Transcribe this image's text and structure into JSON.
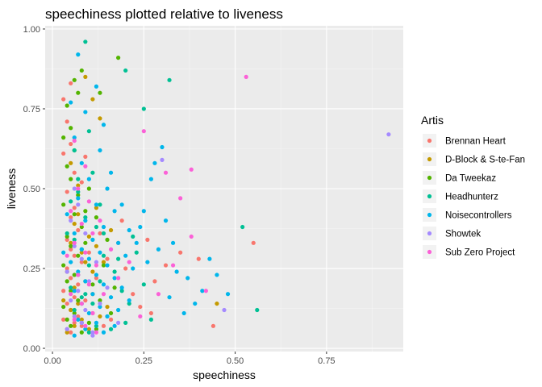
{
  "chart_data": {
    "type": "scatter",
    "title": "speechiness plotted relative to liveness",
    "xlabel": "speechiness",
    "ylabel": "liveness",
    "xlim": [
      -0.02,
      0.96
    ],
    "ylim": [
      -0.01,
      1.01
    ],
    "x_ticks": [
      {
        "value": 0.0,
        "label": "0.00"
      },
      {
        "value": 0.25,
        "label": "0.25"
      },
      {
        "value": 0.5,
        "label": "0.50"
      },
      {
        "value": 0.75,
        "label": "0.75"
      }
    ],
    "y_ticks": [
      {
        "value": 0.0,
        "label": "0.00"
      },
      {
        "value": 0.25,
        "label": "0.25"
      },
      {
        "value": 0.5,
        "label": "0.50"
      },
      {
        "value": 0.75,
        "label": "0.75"
      },
      {
        "value": 1.0,
        "label": "1.00"
      }
    ],
    "grid": true,
    "legend": {
      "title": "Artis",
      "position": "right"
    },
    "series": [
      {
        "name": "Brennan Heart",
        "color": "#F8766D",
        "points": [
          [
            0.03,
            0.78
          ],
          [
            0.04,
            0.71
          ],
          [
            0.05,
            0.64
          ],
          [
            0.03,
            0.61
          ],
          [
            0.06,
            0.55
          ],
          [
            0.04,
            0.49
          ],
          [
            0.06,
            0.44
          ],
          [
            0.05,
            0.41
          ],
          [
            0.07,
            0.37
          ],
          [
            0.04,
            0.34
          ],
          [
            0.05,
            0.31
          ],
          [
            0.06,
            0.29
          ],
          [
            0.08,
            0.27
          ],
          [
            0.04,
            0.25
          ],
          [
            0.05,
            0.22
          ],
          [
            0.07,
            0.2
          ],
          [
            0.03,
            0.18
          ],
          [
            0.06,
            0.16
          ],
          [
            0.04,
            0.14
          ],
          [
            0.05,
            0.12
          ],
          [
            0.07,
            0.1
          ],
          [
            0.03,
            0.09
          ],
          [
            0.06,
            0.08
          ],
          [
            0.08,
            0.07
          ],
          [
            0.04,
            0.06
          ],
          [
            0.05,
            0.05
          ],
          [
            0.1,
            0.3
          ],
          [
            0.12,
            0.22
          ],
          [
            0.09,
            0.15
          ],
          [
            0.11,
            0.11
          ],
          [
            0.13,
            0.36
          ],
          [
            0.15,
            0.28
          ],
          [
            0.18,
            0.33
          ],
          [
            0.2,
            0.25
          ],
          [
            0.22,
            0.17
          ],
          [
            0.26,
            0.34
          ],
          [
            0.24,
            0.13
          ],
          [
            0.28,
            0.21
          ],
          [
            0.35,
            0.3
          ],
          [
            0.4,
            0.28
          ],
          [
            0.55,
            0.33
          ],
          [
            0.44,
            0.07
          ],
          [
            0.16,
            0.09
          ],
          [
            0.27,
            0.11
          ],
          [
            0.05,
            0.83
          ],
          [
            0.09,
            0.6
          ],
          [
            0.08,
            0.52
          ],
          [
            0.14,
            0.07
          ],
          [
            0.19,
            0.4
          ],
          [
            0.31,
            0.26
          ]
        ]
      },
      {
        "name": "D-Block & S-te-Fan",
        "color": "#C49A00",
        "points": [
          [
            0.09,
            0.85
          ],
          [
            0.11,
            0.78
          ],
          [
            0.13,
            0.72
          ],
          [
            0.05,
            0.58
          ],
          [
            0.07,
            0.51
          ],
          [
            0.12,
            0.44
          ],
          [
            0.06,
            0.39
          ],
          [
            0.1,
            0.35
          ],
          [
            0.08,
            0.3
          ],
          [
            0.14,
            0.27
          ],
          [
            0.04,
            0.24
          ],
          [
            0.09,
            0.21
          ],
          [
            0.06,
            0.19
          ],
          [
            0.11,
            0.17
          ],
          [
            0.07,
            0.14
          ],
          [
            0.05,
            0.12
          ],
          [
            0.13,
            0.1
          ],
          [
            0.08,
            0.09
          ],
          [
            0.06,
            0.07
          ],
          [
            0.1,
            0.06
          ],
          [
            0.04,
            0.05
          ],
          [
            0.15,
            0.13
          ],
          [
            0.12,
            0.32
          ],
          [
            0.16,
            0.37
          ],
          [
            0.45,
            0.14
          ],
          [
            0.07,
            0.42
          ],
          [
            0.09,
            0.27
          ],
          [
            0.03,
            0.15
          ],
          [
            0.11,
            0.24
          ],
          [
            0.05,
            0.33
          ]
        ]
      },
      {
        "name": "Da Tweekaz",
        "color": "#53B400",
        "points": [
          [
            0.08,
            0.87
          ],
          [
            0.06,
            0.84
          ],
          [
            0.07,
            0.8
          ],
          [
            0.04,
            0.76
          ],
          [
            0.05,
            0.69
          ],
          [
            0.03,
            0.66
          ],
          [
            0.06,
            0.62
          ],
          [
            0.04,
            0.57
          ],
          [
            0.05,
            0.53
          ],
          [
            0.07,
            0.48
          ],
          [
            0.03,
            0.45
          ],
          [
            0.06,
            0.42
          ],
          [
            0.08,
            0.38
          ],
          [
            0.04,
            0.35
          ],
          [
            0.05,
            0.32
          ],
          [
            0.07,
            0.29
          ],
          [
            0.03,
            0.26
          ],
          [
            0.06,
            0.23
          ],
          [
            0.04,
            0.21
          ],
          [
            0.05,
            0.18
          ],
          [
            0.07,
            0.15
          ],
          [
            0.03,
            0.13
          ],
          [
            0.06,
            0.11
          ],
          [
            0.04,
            0.09
          ],
          [
            0.05,
            0.07
          ],
          [
            0.08,
            0.05
          ],
          [
            0.1,
            0.5
          ],
          [
            0.12,
            0.41
          ],
          [
            0.09,
            0.33
          ],
          [
            0.11,
            0.2
          ],
          [
            0.14,
            0.26
          ],
          [
            0.13,
            0.15
          ],
          [
            0.1,
            0.08
          ],
          [
            0.18,
            0.91
          ],
          [
            0.13,
            0.8
          ],
          [
            0.15,
            0.34
          ],
          [
            0.17,
            0.19
          ],
          [
            0.16,
            0.11
          ],
          [
            0.12,
            0.06
          ],
          [
            0.09,
            0.43
          ]
        ]
      },
      {
        "name": "Headhunterz",
        "color": "#00C094",
        "points": [
          [
            0.09,
            0.96
          ],
          [
            0.2,
            0.87
          ],
          [
            0.32,
            0.84
          ],
          [
            0.25,
            0.75
          ],
          [
            0.1,
            0.68
          ],
          [
            0.06,
            0.62
          ],
          [
            0.11,
            0.55
          ],
          [
            0.07,
            0.49
          ],
          [
            0.05,
            0.46
          ],
          [
            0.09,
            0.41
          ],
          [
            0.12,
            0.38
          ],
          [
            0.06,
            0.34
          ],
          [
            0.08,
            0.31
          ],
          [
            0.14,
            0.29
          ],
          [
            0.1,
            0.26
          ],
          [
            0.07,
            0.23
          ],
          [
            0.13,
            0.21
          ],
          [
            0.05,
            0.19
          ],
          [
            0.09,
            0.17
          ],
          [
            0.11,
            0.14
          ],
          [
            0.06,
            0.12
          ],
          [
            0.15,
            0.1
          ],
          [
            0.08,
            0.08
          ],
          [
            0.12,
            0.07
          ],
          [
            0.1,
            0.05
          ],
          [
            0.17,
            0.24
          ],
          [
            0.19,
            0.18
          ],
          [
            0.21,
            0.14
          ],
          [
            0.23,
            0.3
          ],
          [
            0.16,
            0.06
          ],
          [
            0.14,
            0.36
          ],
          [
            0.27,
            0.09
          ],
          [
            0.25,
            0.2
          ],
          [
            0.52,
            0.38
          ],
          [
            0.56,
            0.12
          ],
          [
            0.2,
            0.08
          ],
          [
            0.18,
            0.28
          ],
          [
            0.22,
            0.35
          ],
          [
            0.13,
            0.45
          ],
          [
            0.07,
            0.53
          ],
          [
            0.04,
            0.36
          ],
          [
            0.08,
            0.16
          ]
        ]
      },
      {
        "name": "Noisecontrollers",
        "color": "#00B6EB",
        "points": [
          [
            0.07,
            0.92
          ],
          [
            0.12,
            0.82
          ],
          [
            0.05,
            0.77
          ],
          [
            0.09,
            0.74
          ],
          [
            0.14,
            0.7
          ],
          [
            0.06,
            0.66
          ],
          [
            0.13,
            0.62
          ],
          [
            0.08,
            0.58
          ],
          [
            0.16,
            0.55
          ],
          [
            0.1,
            0.53
          ],
          [
            0.15,
            0.5
          ],
          [
            0.07,
            0.47
          ],
          [
            0.12,
            0.45
          ],
          [
            0.17,
            0.43
          ],
          [
            0.09,
            0.4
          ],
          [
            0.14,
            0.38
          ],
          [
            0.06,
            0.36
          ],
          [
            0.11,
            0.34
          ],
          [
            0.18,
            0.33
          ],
          [
            0.08,
            0.31
          ],
          [
            0.13,
            0.3
          ],
          [
            0.2,
            0.29
          ],
          [
            0.1,
            0.28
          ],
          [
            0.05,
            0.27
          ],
          [
            0.15,
            0.26
          ],
          [
            0.22,
            0.25
          ],
          [
            0.07,
            0.24
          ],
          [
            0.12,
            0.23
          ],
          [
            0.17,
            0.22
          ],
          [
            0.09,
            0.21
          ],
          [
            0.14,
            0.2
          ],
          [
            0.19,
            0.19
          ],
          [
            0.06,
            0.18
          ],
          [
            0.11,
            0.17
          ],
          [
            0.16,
            0.16
          ],
          [
            0.21,
            0.15
          ],
          [
            0.08,
            0.14
          ],
          [
            0.13,
            0.13
          ],
          [
            0.18,
            0.12
          ],
          [
            0.1,
            0.11
          ],
          [
            0.15,
            0.1
          ],
          [
            0.07,
            0.09
          ],
          [
            0.12,
            0.08
          ],
          [
            0.17,
            0.07
          ],
          [
            0.09,
            0.06
          ],
          [
            0.14,
            0.05
          ],
          [
            0.06,
            0.04
          ],
          [
            0.23,
            0.33
          ],
          [
            0.26,
            0.27
          ],
          [
            0.29,
            0.31
          ],
          [
            0.3,
            0.63
          ],
          [
            0.28,
            0.58
          ],
          [
            0.27,
            0.53
          ],
          [
            0.31,
            0.4
          ],
          [
            0.33,
            0.33
          ],
          [
            0.34,
            0.24
          ],
          [
            0.37,
            0.22
          ],
          [
            0.39,
            0.14
          ],
          [
            0.41,
            0.18
          ],
          [
            0.45,
            0.23
          ],
          [
            0.48,
            0.17
          ],
          [
            0.43,
            0.28
          ],
          [
            0.36,
            0.11
          ],
          [
            0.32,
            0.16
          ],
          [
            0.25,
            0.43
          ],
          [
            0.24,
            0.38
          ],
          [
            0.04,
            0.42
          ],
          [
            0.03,
            0.3
          ],
          [
            0.19,
            0.45
          ],
          [
            0.21,
            0.37
          ]
        ]
      },
      {
        "name": "Showtek",
        "color": "#A58AFF",
        "points": [
          [
            0.92,
            0.67
          ],
          [
            0.3,
            0.59
          ],
          [
            0.07,
            0.45
          ],
          [
            0.05,
            0.4
          ],
          [
            0.09,
            0.36
          ],
          [
            0.06,
            0.32
          ],
          [
            0.08,
            0.28
          ],
          [
            0.04,
            0.24
          ],
          [
            0.1,
            0.21
          ],
          [
            0.07,
            0.18
          ],
          [
            0.05,
            0.15
          ],
          [
            0.09,
            0.12
          ],
          [
            0.06,
            0.1
          ],
          [
            0.08,
            0.08
          ],
          [
            0.04,
            0.06
          ],
          [
            0.11,
            0.05
          ],
          [
            0.13,
            0.14
          ],
          [
            0.12,
            0.27
          ],
          [
            0.15,
            0.19
          ],
          [
            0.47,
            0.12
          ],
          [
            0.11,
            0.04
          ],
          [
            0.06,
            0.5
          ],
          [
            0.18,
            0.08
          ]
        ]
      },
      {
        "name": "Sub Zero Project",
        "color": "#FB61D7",
        "points": [
          [
            0.53,
            0.85
          ],
          [
            0.25,
            0.68
          ],
          [
            0.31,
            0.55
          ],
          [
            0.38,
            0.56
          ],
          [
            0.35,
            0.47
          ],
          [
            0.06,
            0.65
          ],
          [
            0.09,
            0.57
          ],
          [
            0.07,
            0.5
          ],
          [
            0.1,
            0.46
          ],
          [
            0.05,
            0.43
          ],
          [
            0.08,
            0.39
          ],
          [
            0.11,
            0.36
          ],
          [
            0.06,
            0.33
          ],
          [
            0.09,
            0.3
          ],
          [
            0.12,
            0.26
          ],
          [
            0.07,
            0.23
          ],
          [
            0.1,
            0.2
          ],
          [
            0.05,
            0.17
          ],
          [
            0.08,
            0.14
          ],
          [
            0.11,
            0.11
          ],
          [
            0.06,
            0.09
          ],
          [
            0.09,
            0.07
          ],
          [
            0.12,
            0.05
          ],
          [
            0.16,
            0.31
          ],
          [
            0.21,
            0.27
          ],
          [
            0.29,
            0.17
          ],
          [
            0.33,
            0.26
          ],
          [
            0.42,
            0.18
          ],
          [
            0.38,
            0.35
          ],
          [
            0.24,
            0.1
          ],
          [
            0.14,
            0.17
          ],
          [
            0.04,
            0.29
          ],
          [
            0.13,
            0.4
          ],
          [
            0.18,
            0.22
          ]
        ]
      }
    ]
  }
}
